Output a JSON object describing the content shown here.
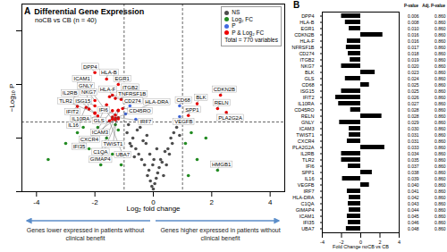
{
  "chart_data": [
    {
      "type": "scatter",
      "panel": "A",
      "title": "Differential Gene Expression",
      "subtitle": "noCB vs CB (n = 40)",
      "xlabel": "Log₂ fold change",
      "ylabel": "−Log₁₀ P",
      "xlim": [
        -4.5,
        4.5
      ],
      "xticks": [
        -4,
        -2,
        0,
        2,
        4
      ],
      "ylim": [
        0,
        3.5
      ],
      "yticks": [
        0,
        1,
        2,
        3
      ],
      "tick_labels": "x",
      "legend": "top-right",
      "legend_caption": "Total = 770 variables",
      "vlines": [
        -1,
        1
      ],
      "hline": 1.3,
      "annotations": [
        "Genes lower expressed in patients without clinical benefit",
        "Genes higher expressed in patients without clinical benefit"
      ],
      "series": [
        {
          "name": "NS",
          "color": "#4d4d4d",
          "marker": "circle",
          "x": [
            -0.9,
            -0.8,
            -0.7,
            -0.6,
            -0.5,
            -0.45,
            -0.4,
            -0.3,
            -0.25,
            -0.2,
            -0.15,
            -0.1,
            -0.05,
            0,
            0.05,
            0.1,
            0.15,
            0.2,
            0.25,
            0.3,
            0.4,
            0.5,
            0.6,
            0.7,
            0.8,
            -0.35,
            -0.55,
            0.35,
            0.45,
            -0.65,
            -0.75,
            0.55,
            0.65,
            -0.85,
            0.9,
            -0.12,
            0.12,
            -0.02,
            0.02,
            -0.22
          ],
          "y": [
            1.1,
            0.9,
            1.0,
            0.8,
            0.7,
            1.2,
            0.6,
            0.5,
            0.9,
            0.3,
            0.4,
            0.2,
            0.1,
            0.05,
            0.15,
            0.25,
            0.35,
            0.45,
            0.6,
            0.55,
            0.75,
            0.8,
            1.0,
            1.1,
            1.2,
            0.95,
            1.15,
            0.3,
            0.5,
            0.65,
            0.85,
            0.7,
            0.9,
            1.25,
            1.05,
            0.7,
            0.8,
            0.5,
            0.6,
            1.05
          ]
        },
        {
          "name": "Log₂ FC",
          "color": "#228b22",
          "marker": "circle",
          "x": [
            -3.6,
            -3.0,
            -2.6,
            -2.2,
            -1.9,
            -1.6,
            -1.4,
            -1.2,
            -1.1,
            1.1,
            1.3,
            1.5,
            1.8,
            2.2,
            -1.8,
            -2.4,
            -1.3,
            1.2
          ],
          "y": [
            0.6,
            0.9,
            1.1,
            0.8,
            1.2,
            1.0,
            0.7,
            1.15,
            0.5,
            0.9,
            1.1,
            0.6,
            1.0,
            0.4,
            0.5,
            1.2,
            1.25,
            0.3
          ],
          "labels": [
            null,
            null,
            null,
            null,
            null,
            null,
            null,
            null,
            null,
            null,
            null,
            null,
            null,
            "HMGB1",
            null,
            null,
            null,
            null
          ]
        },
        {
          "name": "P",
          "color": "#4169e1",
          "marker": "circle",
          "x": [
            -0.95,
            -0.8,
            -0.6,
            0.9,
            0.9
          ],
          "y": [
            1.45,
            1.6,
            1.35,
            1.6,
            1.4
          ],
          "labels": [
            null,
            null,
            null,
            "CD68",
            "VEGFB"
          ]
        },
        {
          "name": "P & Log₂ FC",
          "color": "#ee0000",
          "marker": "circle",
          "x": [
            -2.0,
            -1.6,
            -1.2,
            2.3,
            -1.4,
            -1.5,
            -1.3,
            -1.1,
            -2.0,
            1.5,
            -1.6,
            -2.0,
            -2.6,
            -2.3,
            -1.05,
            2.2,
            -2.2,
            -1.2,
            -1.2,
            -1.4,
            2.5,
            -2.0,
            -2.0,
            -1.3,
            1.2,
            -1.9,
            -1.4,
            -1.2,
            -1.3,
            -1.2,
            -1.4,
            -1.3,
            -1.5
          ],
          "y": [
            2.22,
            2.1,
            2.0,
            1.8,
            1.8,
            1.77,
            1.74,
            1.72,
            1.7,
            1.64,
            1.62,
            1.6,
            1.59,
            1.57,
            1.55,
            1.55,
            1.54,
            1.52,
            1.51,
            1.51,
            1.48,
            1.47,
            1.46,
            1.43,
            1.42,
            1.41,
            1.39,
            1.38,
            1.37,
            1.36,
            1.35,
            1.34,
            1.32
          ],
          "labels": [
            "DPP4",
            "HLA-B",
            "EGR1",
            "CDKN2B",
            "HLA-F",
            "TNFRSF1B",
            "CD274",
            "ITGB2",
            "NKG7",
            "BLK",
            "GLS",
            "ISG15",
            "IFIT2",
            "IL10RA",
            "CD45RO",
            "RELN",
            "GNLY",
            "ICAM3",
            "TWIST1",
            "CXCR4",
            "PLA2G2A",
            "IL2RB",
            "TLR2",
            "IFI6",
            "SPP1",
            "IL16",
            "IRF7",
            "HLA-DRA",
            "C1QA",
            "GIMAP4",
            "ICAM1",
            "IFI35",
            "UBA7"
          ]
        }
      ]
    },
    {
      "type": "bar",
      "panel": "B",
      "orientation": "horizontal",
      "color": "#000000",
      "xlabel": "Fold Change noCB vs CB",
      "xlim": [
        -4,
        4
      ],
      "xticks": [
        -4,
        -2,
        0,
        2,
        4
      ],
      "categories": [
        "DPP4",
        "HLA-B",
        "EGR1",
        "CDKN2B",
        "HLA-F",
        "TNFRSF1B",
        "CD274",
        "ITGB2",
        "NKG7",
        "BLK",
        "GLS",
        "CD68",
        "ISG15",
        "IFIT2",
        "IL10RA",
        "CD45RO",
        "RELN",
        "GNLY",
        "ICAM3",
        "TWIST1",
        "CXCR4",
        "PLA2G2A",
        "IL2RB",
        "TLR2",
        "IFI6",
        "SPP1",
        "IL16",
        "VEGFB",
        "IRF7",
        "HLA-DRA",
        "C1QA",
        "GIMAP4",
        "ICAM1",
        "IFI35",
        "UBA7"
      ],
      "values": [
        -2.0,
        -1.6,
        -1.2,
        2.3,
        -1.4,
        -1.5,
        -1.3,
        -1.1,
        -2.0,
        1.5,
        -1.6,
        0.9,
        -2.0,
        -2.6,
        -2.3,
        -1.05,
        2.2,
        -2.2,
        -1.2,
        -1.2,
        -1.4,
        2.5,
        -2.0,
        -2.0,
        -1.3,
        1.2,
        -1.9,
        0.9,
        -1.4,
        -1.2,
        -1.3,
        -1.2,
        -1.4,
        -1.3,
        -1.5
      ],
      "column_titles": [
        "P-value",
        "Adj. P-value"
      ],
      "p_values": [
        "0.006",
        "0.008",
        "0.010",
        "0.016",
        "0.016",
        "0.017",
        "0.018",
        "0.019",
        "0.020",
        "0.023",
        "0.024",
        "0.025",
        "0.025",
        "0.026",
        "0.027",
        "0.028",
        "0.028",
        "0.029",
        "0.030",
        "0.031",
        "0.031",
        "0.033",
        "0.034",
        "0.035",
        "0.037",
        "0.038",
        "0.039",
        "0.040",
        "0.041",
        "0.042",
        "0.043",
        "0.044",
        "0.045",
        "0.046",
        "0.048"
      ],
      "adj_p_values": [
        "0.860",
        "0.860",
        "0.860",
        "0.860",
        "0.860",
        "0.860",
        "0.860",
        "0.860",
        "0.860",
        "0.860",
        "0.860",
        "0.860",
        "0.860",
        "0.860",
        "0.860",
        "0.860",
        "0.860",
        "0.860",
        "0.860",
        "0.860",
        "0.860",
        "0.860",
        "0.860",
        "0.860",
        "0.860",
        "0.860",
        "0.860",
        "0.860",
        "0.860",
        "0.860",
        "0.860",
        "0.860",
        "0.860",
        "0.860",
        "0.860"
      ]
    }
  ]
}
